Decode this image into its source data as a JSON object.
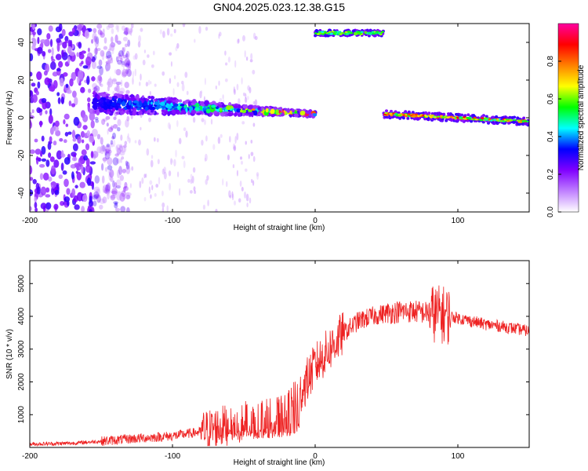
{
  "title": "GN04.2025.023.12.38.G15",
  "chart_data": [
    {
      "type": "heatmap",
      "xlabel": "Height of straight line (km)",
      "ylabel": "Frequency (Hz)",
      "xlim": [
        -200,
        150
      ],
      "ylim": [
        -50,
        50
      ],
      "xticks": [
        -200,
        -100,
        0,
        100
      ],
      "yticks": [
        -40,
        -20,
        0,
        20,
        40
      ],
      "colorbar": {
        "label": "Normalized spectral amplitude",
        "range": [
          0,
          1
        ],
        "ticks": [
          "0.0",
          "0.2",
          "0.4",
          "0.6",
          "0.8"
        ],
        "colors": [
          "#ffffff",
          "#c080ff",
          "#8000ff",
          "#0000ff",
          "#00ffff",
          "#00ff00",
          "#ffff00",
          "#ff8000",
          "#ff0000",
          "#ff00a0"
        ]
      },
      "features": [
        {
          "name": "scatter noise region",
          "x": [
            -200,
            -155
          ],
          "freq": [
            -50,
            50
          ],
          "amplitude": 0.1
        },
        {
          "name": "main tone",
          "x": [
            -155,
            0
          ],
          "freq_start": 8,
          "freq_end": 2,
          "amplitude_peak": 0.9
        },
        {
          "name": "high band",
          "x": [
            0,
            48
          ],
          "freq": 45,
          "amplitude": 0.5
        },
        {
          "name": "post tone",
          "x": [
            48,
            150
          ],
          "freq_start": 2,
          "freq_end": -2,
          "amplitude_peak": 0.85
        }
      ]
    },
    {
      "type": "line",
      "xlabel": "Height of straight line (km)",
      "ylabel": "SNR (10 * v/v)",
      "xlim": [
        -200,
        150
      ],
      "ylim": [
        0,
        5700
      ],
      "xticks": [
        -200,
        -100,
        0,
        100
      ],
      "yticks": [
        1000,
        2000,
        3000,
        4000,
        5000
      ],
      "color": "#ee2222",
      "envelope": {
        "x": [
          -200,
          -170,
          -150,
          -130,
          -100,
          -80,
          -60,
          -40,
          -20,
          -10,
          0,
          10,
          20,
          30,
          40,
          50,
          60,
          70,
          80,
          90,
          100,
          110,
          120,
          130,
          150
        ],
        "y": [
          100,
          130,
          190,
          260,
          350,
          480,
          700,
          900,
          1000,
          1700,
          2500,
          3000,
          3500,
          3850,
          4000,
          4100,
          4150,
          4150,
          4100,
          4050,
          3950,
          3850,
          3750,
          3700,
          3550
        ]
      }
    }
  ]
}
